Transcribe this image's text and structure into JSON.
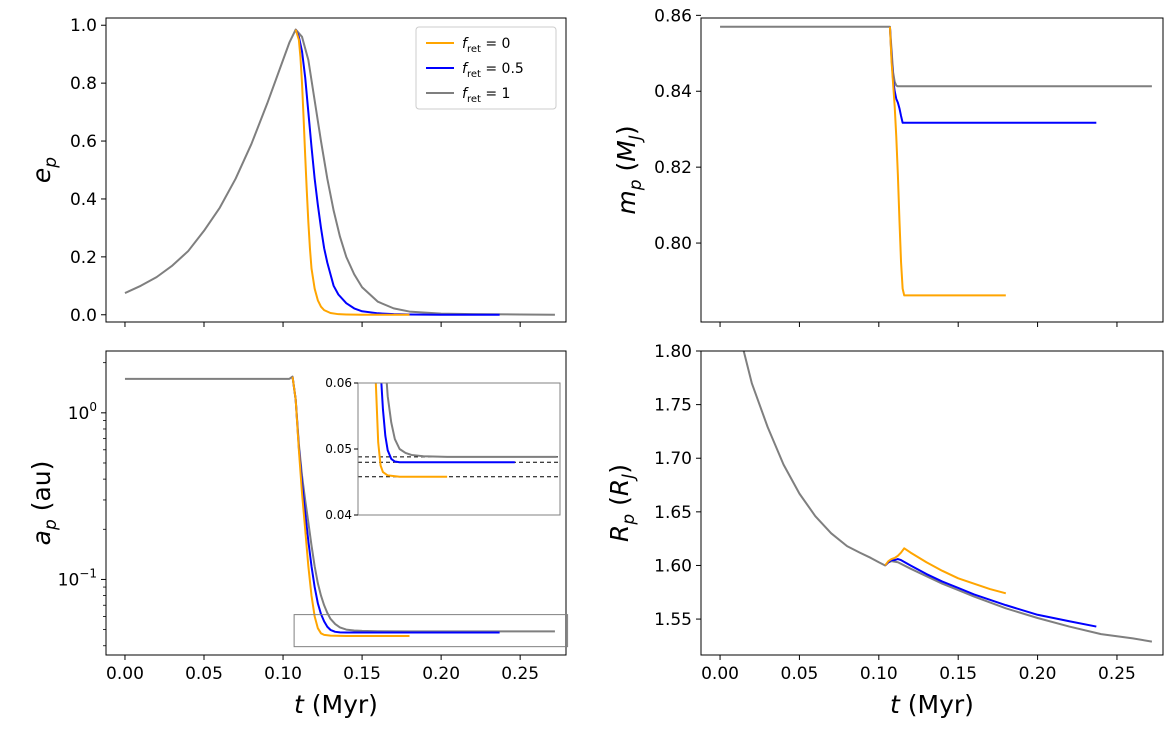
{
  "chart_data": [
    {
      "id": "ecc",
      "type": "line",
      "ylabel": {
        "sym": "e",
        "sub": "p",
        "unit": ""
      },
      "xlim": [
        -0.012,
        0.279
      ],
      "ylim": [
        -0.025,
        1.025
      ],
      "xticks": [
        0.0,
        0.05,
        0.1,
        0.15,
        0.2,
        0.25
      ],
      "yticks": [
        0.0,
        0.2,
        0.4,
        0.6,
        0.8,
        1.0
      ],
      "yticklabels": [
        "0.0",
        "0.2",
        "0.4",
        "0.6",
        "0.8",
        "1.0"
      ],
      "show_xticklabels": false,
      "legend": {
        "location": "top-right",
        "entries": [
          {
            "series": "fret0",
            "label_sym": "f",
            "label_sub": "ret",
            "label_val": " = 0"
          },
          {
            "series": "fret05",
            "label_sym": "f",
            "label_sub": "ret",
            "label_val": " = 0.5"
          },
          {
            "series": "fret1",
            "label_sym": "f",
            "label_sub": "ret",
            "label_val": " = 1"
          }
        ]
      },
      "series": [
        {
          "name": "fret1",
          "color": "#7f7f7f",
          "x": [
            0.0,
            0.01,
            0.02,
            0.03,
            0.04,
            0.05,
            0.06,
            0.07,
            0.08,
            0.09,
            0.1,
            0.104,
            0.108,
            0.112,
            0.116,
            0.12,
            0.124,
            0.128,
            0.132,
            0.136,
            0.14,
            0.145,
            0.15,
            0.16,
            0.17,
            0.18,
            0.2,
            0.22,
            0.25,
            0.272
          ],
          "y": [
            0.075,
            0.1,
            0.13,
            0.17,
            0.22,
            0.29,
            0.37,
            0.47,
            0.59,
            0.73,
            0.88,
            0.94,
            0.985,
            0.96,
            0.88,
            0.74,
            0.6,
            0.47,
            0.36,
            0.27,
            0.2,
            0.14,
            0.095,
            0.045,
            0.022,
            0.011,
            0.004,
            0.002,
            0.001,
            0.0
          ]
        },
        {
          "name": "fret05",
          "color": "#0000ff",
          "x": [
            0.108,
            0.11,
            0.112,
            0.114,
            0.116,
            0.118,
            0.12,
            0.122,
            0.124,
            0.126,
            0.128,
            0.13,
            0.132,
            0.135,
            0.14,
            0.145,
            0.15,
            0.16,
            0.17,
            0.18,
            0.2,
            0.22,
            0.237
          ],
          "y": [
            0.985,
            0.96,
            0.91,
            0.82,
            0.7,
            0.58,
            0.47,
            0.38,
            0.3,
            0.23,
            0.18,
            0.14,
            0.1,
            0.07,
            0.04,
            0.022,
            0.012,
            0.005,
            0.002,
            0.001,
            0.0,
            0.0,
            0.0
          ]
        },
        {
          "name": "fret0",
          "color": "#ffa500",
          "x": [
            0.108,
            0.11,
            0.111,
            0.112,
            0.113,
            0.114,
            0.115,
            0.116,
            0.117,
            0.118,
            0.12,
            0.122,
            0.124,
            0.126,
            0.13,
            0.135,
            0.14,
            0.15,
            0.16,
            0.18
          ],
          "y": [
            0.985,
            0.95,
            0.89,
            0.8,
            0.68,
            0.55,
            0.43,
            0.32,
            0.23,
            0.16,
            0.09,
            0.05,
            0.028,
            0.016,
            0.006,
            0.002,
            0.001,
            0.0,
            0.0,
            0.0
          ]
        }
      ]
    },
    {
      "id": "mass",
      "type": "line",
      "ylabel": {
        "sym": "m",
        "sub": "p",
        "unit": "M",
        "unitsub": "J"
      },
      "xlim": [
        -0.012,
        0.279
      ],
      "ylim": [
        0.7792,
        0.8593
      ],
      "xticks": [
        0.0,
        0.05,
        0.1,
        0.15,
        0.2,
        0.25
      ],
      "yticks": [
        0.8,
        0.82,
        0.84,
        0.86
      ],
      "yticklabels": [
        "0.80",
        "0.82",
        "0.84",
        "0.86"
      ],
      "show_xticklabels": false,
      "series": [
        {
          "name": "fret1",
          "color": "#7f7f7f",
          "x": [
            0.0,
            0.107,
            0.108,
            0.109,
            0.11,
            0.111,
            0.112,
            0.272
          ],
          "y": [
            0.857,
            0.857,
            0.851,
            0.845,
            0.8425,
            0.8415,
            0.8413,
            0.8413
          ]
        },
        {
          "name": "fret05",
          "color": "#0000ff",
          "x": [
            0.107,
            0.108,
            0.109,
            0.11,
            0.111,
            0.112,
            0.113,
            0.114,
            0.115,
            0.237
          ],
          "y": [
            0.857,
            0.849,
            0.843,
            0.84,
            0.838,
            0.837,
            0.8355,
            0.8335,
            0.8317,
            0.8317
          ]
        },
        {
          "name": "fret0",
          "color": "#ffa500",
          "x": [
            0.107,
            0.108,
            0.109,
            0.11,
            0.111,
            0.112,
            0.113,
            0.114,
            0.115,
            0.116,
            0.18
          ],
          "y": [
            0.857,
            0.848,
            0.842,
            0.836,
            0.828,
            0.818,
            0.806,
            0.795,
            0.788,
            0.7862,
            0.7862
          ]
        }
      ]
    },
    {
      "id": "semimajor",
      "type": "line",
      "yscale": "log",
      "ylabel": {
        "sym": "a",
        "sub": "p",
        "unit": "au"
      },
      "xlim": [
        -0.012,
        0.279
      ],
      "ylim": [
        0.0352,
        2.35
      ],
      "xticks": [
        0.0,
        0.05,
        0.1,
        0.15,
        0.2,
        0.25
      ],
      "xticklabels": [
        "0.00",
        "0.05",
        "0.10",
        "0.15",
        "0.20",
        "0.25"
      ],
      "xlabel": {
        "sym": "t",
        "unit": "Myr"
      },
      "yticks": [
        0.1,
        1.0
      ],
      "ytickbase": "10",
      "ytickexps": [
        "−1",
        "0"
      ],
      "series": [
        {
          "name": "fret1",
          "color": "#7f7f7f",
          "x": [
            0.0,
            0.104,
            0.106,
            0.108,
            0.11,
            0.112,
            0.114,
            0.116,
            0.118,
            0.12,
            0.122,
            0.124,
            0.126,
            0.128,
            0.13,
            0.133,
            0.136,
            0.14,
            0.145,
            0.15,
            0.16,
            0.18,
            0.2,
            0.25,
            0.272
          ],
          "y": [
            1.6,
            1.6,
            1.65,
            1.2,
            0.65,
            0.42,
            0.3,
            0.22,
            0.16,
            0.12,
            0.095,
            0.08,
            0.07,
            0.063,
            0.058,
            0.054,
            0.0515,
            0.05,
            0.0494,
            0.0491,
            0.0489,
            0.0488,
            0.0488,
            0.0488,
            0.0488
          ]
        },
        {
          "name": "fret05",
          "color": "#0000ff",
          "x": [
            0.106,
            0.108,
            0.11,
            0.112,
            0.114,
            0.116,
            0.118,
            0.12,
            0.122,
            0.124,
            0.126,
            0.128,
            0.13,
            0.133,
            0.136,
            0.14,
            0.15,
            0.16,
            0.2,
            0.237
          ],
          "y": [
            1.65,
            1.2,
            0.62,
            0.38,
            0.25,
            0.17,
            0.12,
            0.09,
            0.072,
            0.062,
            0.056,
            0.052,
            0.0498,
            0.0485,
            0.0481,
            0.048,
            0.048,
            0.048,
            0.048,
            0.048
          ]
        },
        {
          "name": "fret0",
          "color": "#ffa500",
          "x": [
            0.106,
            0.108,
            0.11,
            0.112,
            0.114,
            0.116,
            0.118,
            0.12,
            0.122,
            0.124,
            0.126,
            0.13,
            0.14,
            0.15,
            0.18
          ],
          "y": [
            1.65,
            1.2,
            0.6,
            0.33,
            0.2,
            0.12,
            0.08,
            0.06,
            0.051,
            0.0475,
            0.0465,
            0.046,
            0.0458,
            0.0458,
            0.0458
          ]
        }
      ],
      "inset": {
        "xlim": [
          0.105,
          0.275
        ],
        "ylim": [
          0.04,
          0.06
        ],
        "yticks": [
          0.04,
          0.05,
          0.06
        ],
        "yticklabels": [
          "0.04",
          "0.05",
          "0.06"
        ],
        "hlines": [
          0.0488,
          0.048,
          0.0458
        ],
        "zoom_box": {
          "xlim": [
            0.107,
            0.28
          ],
          "ylim": [
            0.0395,
            0.0615
          ]
        }
      }
    },
    {
      "id": "radius",
      "type": "line",
      "ylabel": {
        "sym": "R",
        "sub": "p",
        "unit": "R",
        "unitsub": "J"
      },
      "xlim": [
        -0.012,
        0.279
      ],
      "ylim": [
        1.5165,
        1.8
      ],
      "xticks": [
        0.0,
        0.05,
        0.1,
        0.15,
        0.2,
        0.25
      ],
      "xticklabels": [
        "0.00",
        "0.05",
        "0.10",
        "0.15",
        "0.20",
        "0.25"
      ],
      "xlabel": {
        "sym": "t",
        "unit": "Myr"
      },
      "yticks": [
        1.55,
        1.6,
        1.65,
        1.7,
        1.75,
        1.8
      ],
      "yticklabels": [
        "1.55",
        "1.60",
        "1.65",
        "1.70",
        "1.75",
        "1.80"
      ],
      "series": [
        {
          "name": "fret1",
          "color": "#7f7f7f",
          "x": [
            0.0149,
            0.02,
            0.03,
            0.04,
            0.05,
            0.06,
            0.07,
            0.08,
            0.088,
            0.095,
            0.1,
            0.104,
            0.106,
            0.108,
            0.112,
            0.12,
            0.13,
            0.14,
            0.15,
            0.16,
            0.18,
            0.2,
            0.22,
            0.24,
            0.26,
            0.272
          ],
          "y": [
            1.8,
            1.77,
            1.729,
            1.694,
            1.667,
            1.646,
            1.63,
            1.618,
            1.612,
            1.607,
            1.603,
            1.6,
            1.603,
            1.604,
            1.603,
            1.597,
            1.59,
            1.583,
            1.577,
            1.571,
            1.56,
            1.551,
            1.543,
            1.536,
            1.532,
            1.529
          ]
        },
        {
          "name": "fret05",
          "color": "#0000ff",
          "x": [
            0.104,
            0.106,
            0.108,
            0.11,
            0.112,
            0.114,
            0.12,
            0.13,
            0.14,
            0.15,
            0.16,
            0.18,
            0.2,
            0.22,
            0.237
          ],
          "y": [
            1.6,
            1.603,
            1.605,
            1.605,
            1.606,
            1.605,
            1.6,
            1.592,
            1.585,
            1.579,
            1.573,
            1.563,
            1.554,
            1.548,
            1.543
          ]
        },
        {
          "name": "fret0",
          "color": "#ffa500",
          "x": [
            0.104,
            0.106,
            0.108,
            0.11,
            0.112,
            0.114,
            0.116,
            0.12,
            0.13,
            0.14,
            0.15,
            0.16,
            0.17,
            0.18
          ],
          "y": [
            1.6,
            1.604,
            1.606,
            1.607,
            1.609,
            1.612,
            1.616,
            1.612,
            1.603,
            1.595,
            1.588,
            1.583,
            1.578,
            1.574
          ]
        }
      ]
    }
  ]
}
